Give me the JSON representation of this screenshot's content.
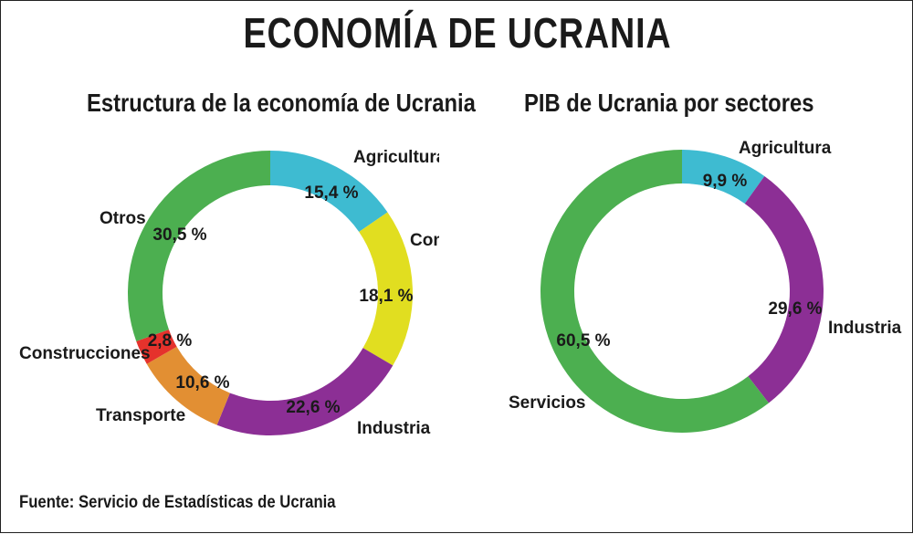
{
  "title": "ECONOMÍA DE UCRANIA",
  "footer": "Fuente: Servicio de Estadísticas de Ucrania",
  "chart_data": [
    {
      "type": "pie",
      "style": "donut",
      "title": "Estructura de la economía de Ucrania",
      "unit": "%",
      "slices": [
        {
          "name": "Agricultura",
          "value": 15.4,
          "value_label": "15,4 %",
          "color": "#3ebbd1"
        },
        {
          "name": "Comercio",
          "value": 18.1,
          "value_label": "18,1 %",
          "color": "#e1de20"
        },
        {
          "name": "Industria",
          "value": 22.6,
          "value_label": "22,6 %",
          "color": "#8c2f95"
        },
        {
          "name": "Transporte",
          "value": 10.6,
          "value_label": "10,6 %",
          "color": "#e28f33"
        },
        {
          "name": "Construcciones",
          "value": 2.8,
          "value_label": "2,8 %",
          "color": "#e5322c"
        },
        {
          "name": "Otros",
          "value": 30.5,
          "value_label": "30,5 %",
          "color": "#4caf50"
        }
      ]
    },
    {
      "type": "pie",
      "style": "donut",
      "title": "PIB de Ucrania por sectores",
      "unit": "%",
      "slices": [
        {
          "name": "Agricultura",
          "value": 9.9,
          "value_label": "9,9 %",
          "color": "#3ebbd1"
        },
        {
          "name": "Industria",
          "value": 29.6,
          "value_label": "29,6 %",
          "color": "#8c2f95"
        },
        {
          "name": "Servicios",
          "value": 60.5,
          "value_label": "60,5 %",
          "color": "#4caf50"
        }
      ]
    }
  ]
}
